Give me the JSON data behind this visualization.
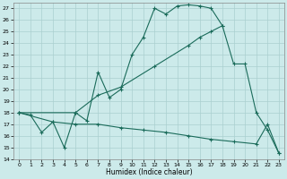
{
  "background_color": "#cceaea",
  "grid_color": "#aacfcf",
  "line_color": "#1a6b5a",
  "xlabel": "Humidex (Indice chaleur)",
  "ylim": [
    14,
    27.5
  ],
  "xlim": [
    -0.5,
    23.5
  ],
  "yticks": [
    14,
    15,
    16,
    17,
    18,
    19,
    20,
    21,
    22,
    23,
    24,
    25,
    26,
    27
  ],
  "xticks": [
    0,
    1,
    2,
    3,
    4,
    5,
    6,
    7,
    8,
    9,
    10,
    11,
    12,
    13,
    14,
    15,
    16,
    17,
    18,
    19,
    20,
    21,
    22,
    23
  ],
  "line1": {
    "x": [
      0,
      1,
      2,
      3,
      4,
      5,
      6,
      7,
      8,
      9,
      10,
      11,
      12,
      13,
      14,
      15,
      16,
      17,
      18
    ],
    "y": [
      18.0,
      17.8,
      16.3,
      17.2,
      15.0,
      18.0,
      17.3,
      21.5,
      19.3,
      20.0,
      23.0,
      24.5,
      27.0,
      26.5,
      27.2,
      27.3,
      27.2,
      27.0,
      25.5
    ]
  },
  "line2": {
    "x": [
      0,
      5,
      7,
      9,
      12,
      15,
      16,
      17,
      18,
      19,
      20,
      21,
      22,
      23
    ],
    "y": [
      18.0,
      18.0,
      19.5,
      20.2,
      22.0,
      23.8,
      24.5,
      25.0,
      25.5,
      22.2,
      22.2,
      18.0,
      16.5,
      14.5
    ]
  },
  "line3": {
    "x": [
      0,
      3,
      5,
      7,
      9,
      11,
      13,
      15,
      17,
      19,
      21,
      22,
      23
    ],
    "y": [
      18.0,
      17.2,
      17.0,
      17.0,
      16.7,
      16.5,
      16.3,
      16.0,
      15.7,
      15.5,
      15.3,
      17.0,
      14.5
    ]
  }
}
